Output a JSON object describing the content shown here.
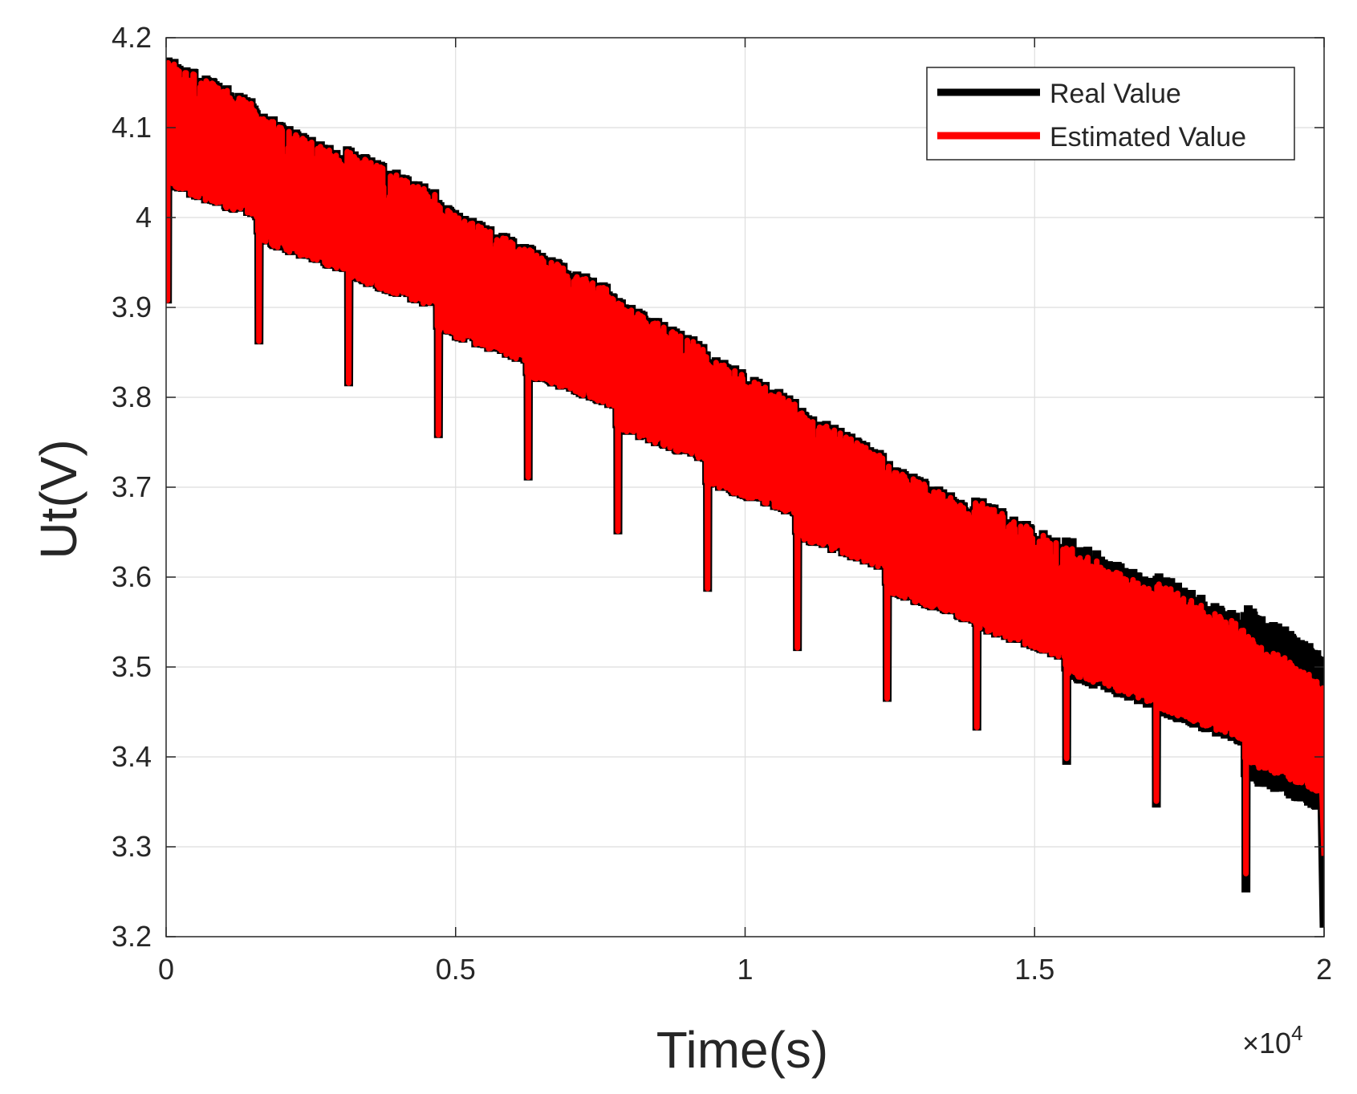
{
  "chart_data": {
    "type": "line",
    "title": "",
    "xlabel": "Time(s)",
    "ylabel": "Ut(V)",
    "x_exponent_label": "×10",
    "x_exponent_power": "4",
    "xlim": [
      0,
      2
    ],
    "ylim": [
      3.2,
      4.2
    ],
    "grid": true,
    "xticks": [
      0,
      0.5,
      1,
      1.5,
      2
    ],
    "xtick_labels": [
      "0",
      "0.5",
      "1",
      "1.5",
      "2"
    ],
    "yticks": [
      3.2,
      3.3,
      3.4,
      3.5,
      3.6,
      3.7,
      3.8,
      3.9,
      4.0,
      4.1,
      4.2
    ],
    "ytick_labels": [
      "3.2",
      "3.3",
      "3.4",
      "3.5",
      "3.6",
      "3.7",
      "3.8",
      "3.9",
      "4",
      "4.1",
      "4.2"
    ],
    "legend_position": "top-right",
    "series": [
      {
        "name": "Real Value",
        "color": "#000000"
      },
      {
        "name": "Estimated Value",
        "color": "#ff0000"
      }
    ],
    "cycles": [
      {
        "start": 0.0,
        "top": 4.19,
        "base": 4.04,
        "dip": 3.91
      },
      {
        "start": 0.158,
        "top": 4.12,
        "base": 3.98,
        "dip": 3.86
      },
      {
        "start": 0.313,
        "top": 4.08,
        "base": 3.94,
        "dip": 3.81
      },
      {
        "start": 0.468,
        "top": 4.02,
        "base": 3.88,
        "dip": 3.76
      },
      {
        "start": 0.623,
        "top": 3.97,
        "base": 3.83,
        "dip": 3.71
      },
      {
        "start": 0.778,
        "top": 3.92,
        "base": 3.77,
        "dip": 3.655
      },
      {
        "start": 0.933,
        "top": 3.86,
        "base": 3.71,
        "dip": 3.59
      },
      {
        "start": 1.088,
        "top": 3.79,
        "base": 3.65,
        "dip": 3.525
      },
      {
        "start": 1.243,
        "top": 3.73,
        "base": 3.59,
        "dip": 3.47
      },
      {
        "start": 1.398,
        "top": 3.68,
        "base": 3.55,
        "dip": 3.43
      },
      {
        "start": 1.553,
        "top": 3.63,
        "base": 3.5,
        "dip": 3.4
      },
      {
        "start": 1.708,
        "top": 3.59,
        "base": 3.46,
        "dip": 3.345
      },
      {
        "start": 1.863,
        "top": 3.55,
        "base": 3.4,
        "dip": 3.265
      }
    ],
    "start_value": 3.98,
    "end_dip_real": 3.21,
    "end_dip_estimated": 3.29
  }
}
